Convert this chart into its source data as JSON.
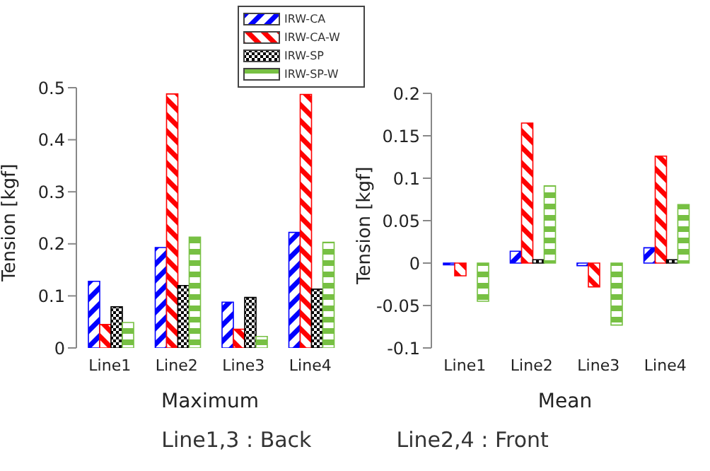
{
  "chart_data": [
    {
      "type": "bar",
      "xlabel": "Maximum",
      "ylabel": "Tension [kgf]",
      "categories": [
        "Line1",
        "Line2",
        "Line3",
        "Line4"
      ],
      "series": [
        {
          "name": "IRW-CA",
          "color": "#0000ff",
          "values": [
            0.128,
            0.193,
            0.088,
            0.222
          ]
        },
        {
          "name": "IRW-CA-W",
          "color": "#ff0000",
          "values": [
            0.045,
            0.488,
            0.036,
            0.487
          ]
        },
        {
          "name": "IRW-SP",
          "color": "#000000",
          "values": [
            0.079,
            0.12,
            0.097,
            0.113
          ]
        },
        {
          "name": "IRW-SP-W",
          "color": "#77c043",
          "values": [
            0.049,
            0.213,
            0.022,
            0.203
          ]
        }
      ],
      "ylim": [
        0,
        0.5
      ],
      "yticks": [
        0,
        0.1,
        0.2,
        0.3,
        0.4,
        0.5
      ],
      "legend": "top right",
      "annotations": [
        "Line1,3 : Back",
        "Line2,4 : Front"
      ]
    },
    {
      "type": "bar",
      "xlabel": "Mean",
      "ylabel": "Tension [kgf]",
      "categories": [
        "Line1",
        "Line2",
        "Line3",
        "Line4"
      ],
      "series": [
        {
          "color": "#0000ff",
          "values": [
            -0.002,
            0.014,
            -0.003,
            0.018
          ]
        },
        {
          "color": "#ff0000",
          "values": [
            -0.015,
            0.165,
            -0.028,
            0.126
          ]
        },
        {
          "color": "#000000",
          "values": [
            0,
            0.004,
            0,
            0.004
          ]
        },
        {
          "color": "#77c043",
          "values": [
            -0.045,
            0.091,
            -0.073,
            0.069
          ]
        }
      ],
      "ylim": [
        -0.1,
        0.2
      ],
      "yticks": [
        -0.1,
        -0.05,
        0,
        0.05,
        0.1,
        0.15,
        0.2
      ]
    }
  ]
}
